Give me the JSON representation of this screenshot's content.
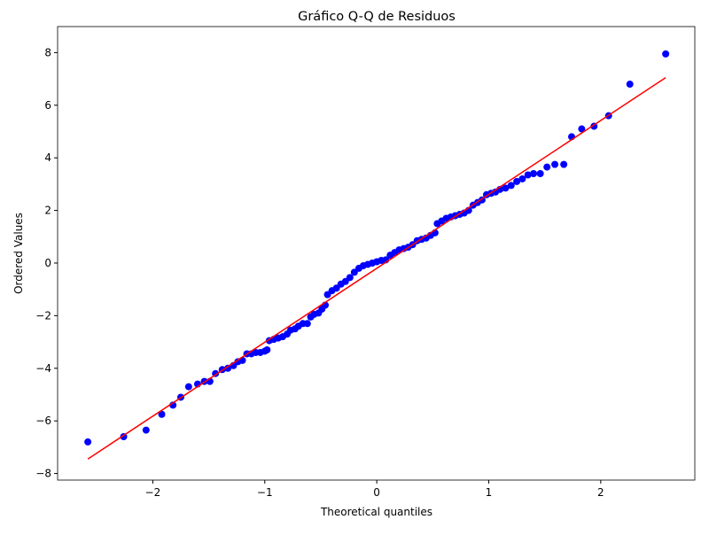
{
  "chart_data": {
    "type": "scatter",
    "title": "Gráfico Q-Q de Residuos",
    "x_label": "Theoretical quantiles",
    "y_label": "Ordered Values",
    "xlim": [
      -2.85,
      2.84
    ],
    "ylim": [
      -8.25,
      8.99
    ],
    "xticks": [
      {
        "value": -2,
        "label": "−2"
      },
      {
        "value": -1,
        "label": "−1"
      },
      0,
      1,
      2
    ],
    "yticks": [
      {
        "value": -8,
        "label": "−8"
      },
      {
        "value": -6,
        "label": "−6"
      },
      {
        "value": -4,
        "label": "−4"
      },
      {
        "value": -2,
        "label": "−2"
      },
      0,
      2,
      4,
      6,
      8
    ],
    "series": [
      {
        "color": "#0000ff",
        "x": [
          -2.58,
          -2.26,
          -2.06,
          -1.92,
          -1.82,
          -1.75,
          -1.68,
          -1.6,
          -1.54,
          -1.49,
          -1.44,
          -1.38,
          -1.33,
          -1.28,
          -1.24,
          -1.2,
          -1.16,
          -1.12,
          -1.08,
          -1.04,
          -1.0,
          -0.98,
          -0.96,
          -0.92,
          -0.88,
          -0.84,
          -0.8,
          -0.77,
          -0.73,
          -0.7,
          -0.66,
          -0.62,
          -0.59,
          -0.56,
          -0.52,
          -0.49,
          -0.46,
          -0.44,
          -0.4,
          -0.36,
          -0.32,
          -0.28,
          -0.24,
          -0.2,
          -0.16,
          -0.12,
          -0.08,
          -0.04,
          0.0,
          0.04,
          0.08,
          0.12,
          0.16,
          0.2,
          0.24,
          0.28,
          0.32,
          0.36,
          0.4,
          0.44,
          0.48,
          0.52,
          0.54,
          0.58,
          0.62,
          0.66,
          0.7,
          0.74,
          0.78,
          0.82,
          0.86,
          0.9,
          0.94,
          0.98,
          1.02,
          1.06,
          1.1,
          1.15,
          1.2,
          1.25,
          1.3,
          1.35,
          1.4,
          1.46,
          1.52,
          1.59,
          1.67,
          1.74,
          1.83,
          1.94,
          2.07,
          2.26,
          2.58
        ],
        "values": [
          -6.8,
          -6.6,
          -6.35,
          -5.75,
          -5.4,
          -5.1,
          -4.7,
          -4.6,
          -4.5,
          -4.5,
          -4.2,
          -4.05,
          -4.0,
          -3.9,
          -3.75,
          -3.7,
          -3.45,
          -3.45,
          -3.4,
          -3.4,
          -3.35,
          -3.3,
          -2.95,
          -2.9,
          -2.85,
          -2.8,
          -2.7,
          -2.55,
          -2.5,
          -2.4,
          -2.3,
          -2.3,
          -2.05,
          -1.95,
          -1.9,
          -1.75,
          -1.6,
          -1.2,
          -1.05,
          -0.95,
          -0.8,
          -0.7,
          -0.55,
          -0.35,
          -0.2,
          -0.1,
          -0.05,
          0.0,
          0.05,
          0.1,
          0.12,
          0.3,
          0.4,
          0.5,
          0.55,
          0.6,
          0.7,
          0.85,
          0.9,
          0.95,
          1.05,
          1.15,
          1.5,
          1.6,
          1.7,
          1.75,
          1.8,
          1.85,
          1.9,
          2.0,
          2.2,
          2.3,
          2.4,
          2.6,
          2.65,
          2.7,
          2.8,
          2.85,
          2.95,
          3.1,
          3.2,
          3.35,
          3.4,
          3.4,
          3.65,
          3.75,
          3.75,
          4.8,
          5.1,
          5.2,
          5.6,
          6.8,
          7.95
        ]
      },
      {
        "color": "#ff0000",
        "line": true,
        "x": [
          -2.58,
          2.58
        ],
        "values": [
          -7.45,
          7.05
        ]
      }
    ]
  }
}
